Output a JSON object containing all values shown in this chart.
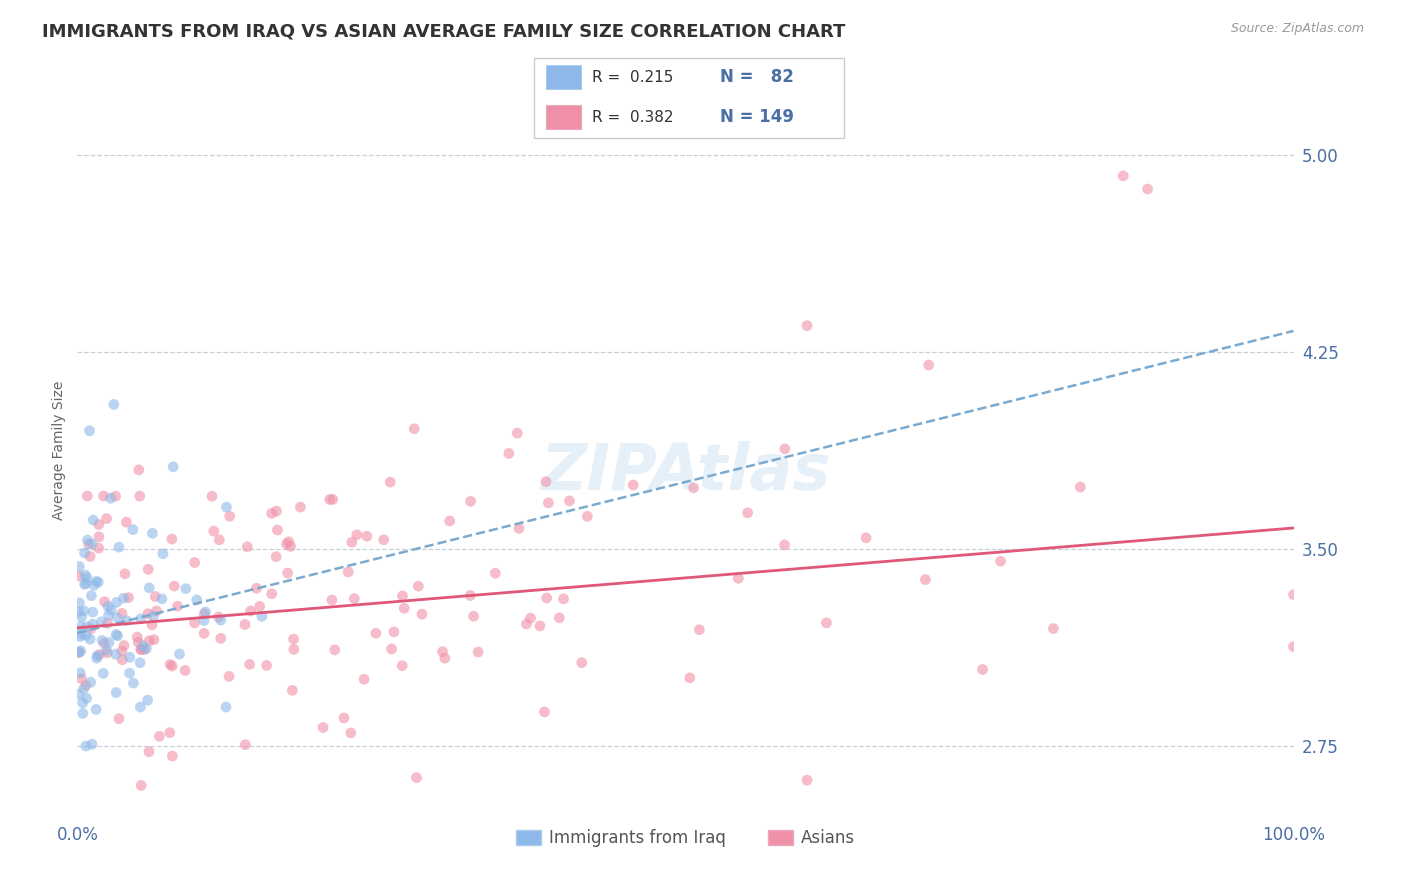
{
  "title": "IMMIGRANTS FROM IRAQ VS ASIAN AVERAGE FAMILY SIZE CORRELATION CHART",
  "source": "Source: ZipAtlas.com",
  "ylabel": "Average Family Size",
  "xmin": 0.0,
  "xmax": 1.0,
  "ymin": 2.5,
  "ymax": 5.25,
  "yticks": [
    2.75,
    3.5,
    4.25,
    5.0
  ],
  "ytick_labels": [
    "2.75",
    "3.50",
    "4.25",
    "5.00"
  ],
  "xtick_labels": [
    "0.0%",
    "100.0%"
  ],
  "title_fontsize": 13,
  "axis_label_fontsize": 10,
  "tick_fontsize": 12,
  "blue_color": "#8DB8E8",
  "pink_color": "#F090A8",
  "blue_line_color": "#7AAAD0",
  "pink_line_color": "#E05878",
  "label_color": "#4A6FA5",
  "legend_label1": "Immigrants from Iraq",
  "legend_label2": "Asians",
  "watermark": "ZIPAtlas",
  "blue_slope": 1.15,
  "blue_intercept": 3.18,
  "pink_slope": 0.38,
  "pink_intercept": 3.2,
  "random_seed_blue": 42,
  "random_seed_pink": 99,
  "grid_color": "#C8D0DC",
  "border_color": "#CCCCCC"
}
